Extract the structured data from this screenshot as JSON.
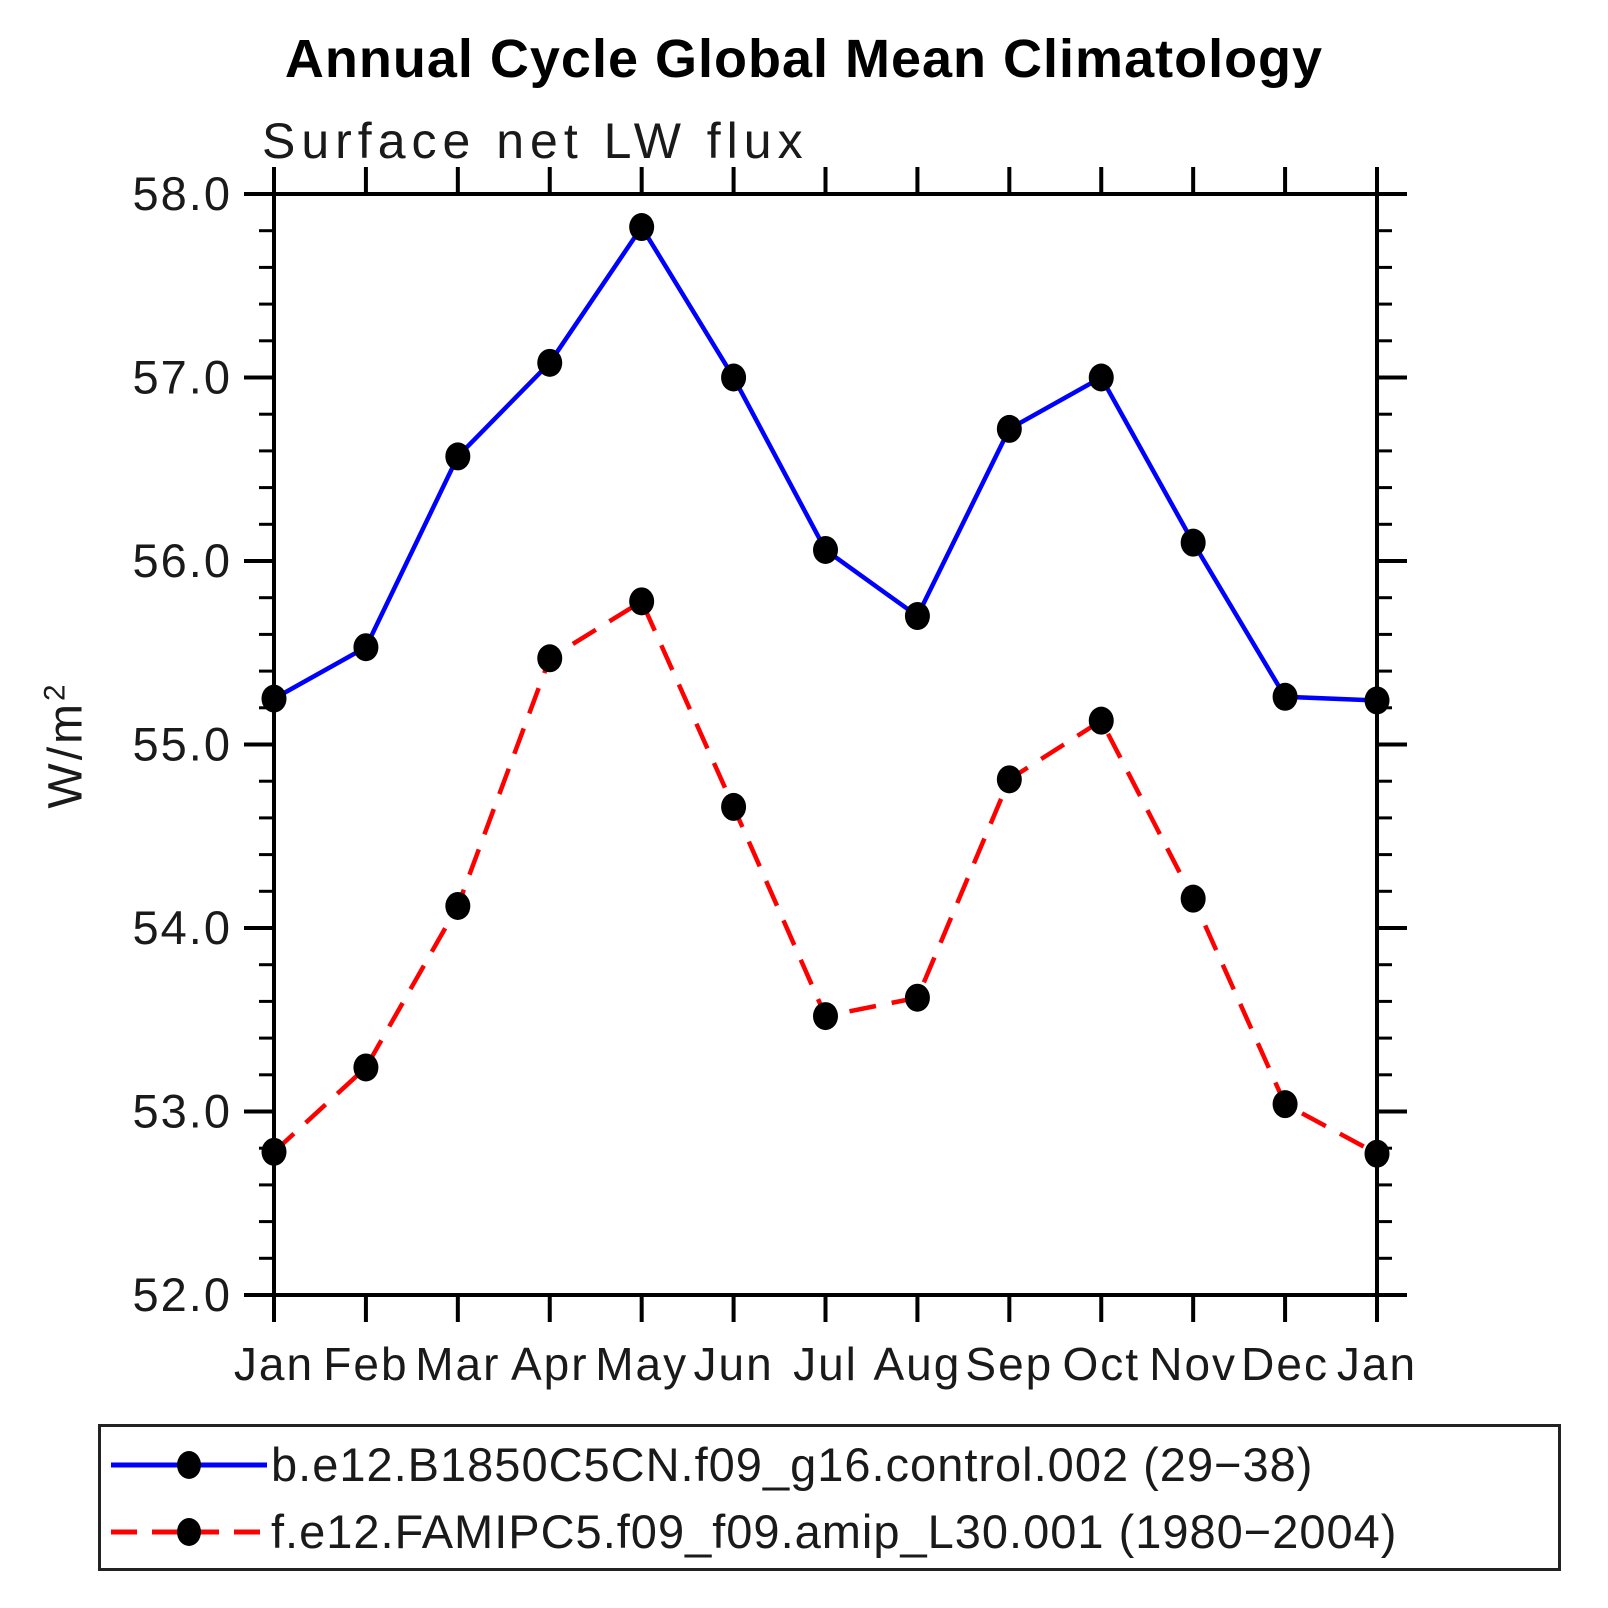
{
  "chart": {
    "title": "Annual Cycle Global Mean Climatology",
    "subtitle": "Surface net LW flux",
    "ylabel_base": "W/m",
    "ylabel_exponent": "2"
  },
  "chart_data": {
    "type": "line",
    "title": "Annual Cycle Global Mean Climatology",
    "subtitle": "Surface net LW flux",
    "xlabel": "",
    "ylabel": "W/m^2",
    "x_labels": [
      "Jan",
      "Feb",
      "Mar",
      "Apr",
      "May",
      "Jun",
      "Jul",
      "Aug",
      "Sep",
      "Oct",
      "Nov",
      "Dec",
      "Jan"
    ],
    "ylim": [
      52.0,
      58.0
    ],
    "y_major_step": 1.0,
    "y_minor_step": 0.2,
    "y_tick_labels": [
      "52.0",
      "53.0",
      "54.0",
      "55.0",
      "56.0",
      "57.0",
      "58.0"
    ],
    "grid": false,
    "legend_position": "bottom",
    "axis_color": "#000000",
    "series": [
      {
        "name": "b.e12.B1850C5CN.f09_g16.control.002 (29−38)",
        "color": "#0000ff",
        "style": "solid",
        "marker": "circle",
        "marker_color": "#000000",
        "values": [
          55.25,
          55.53,
          56.57,
          57.08,
          57.82,
          57.0,
          56.06,
          55.7,
          56.72,
          57.0,
          56.1,
          55.26,
          55.24
        ]
      },
      {
        "name": "f.e12.FAMIPC5.f09_f09.amip_L30.001 (1980−2004)",
        "color": "#ff0000",
        "style": "dashed",
        "marker": "circle",
        "marker_color": "#000000",
        "values": [
          52.78,
          53.24,
          54.12,
          55.47,
          55.78,
          54.66,
          53.52,
          53.62,
          54.81,
          55.13,
          54.16,
          53.04,
          52.77
        ]
      }
    ]
  }
}
